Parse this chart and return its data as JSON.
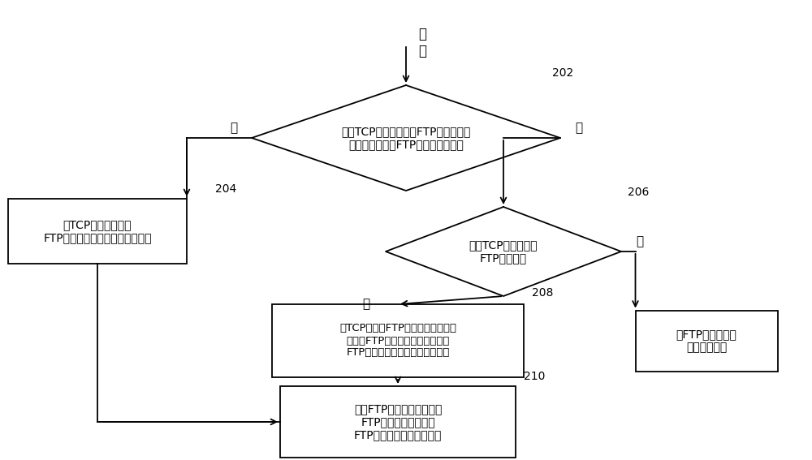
{
  "bg_color": "#ffffff",
  "font_color": "#000000",
  "title_text": "报\n文",
  "node_202_label": "判断TCP报文五元组中FTP服务器侧的\n端口号是否命中FTP控制通道端口表",
  "node_202_id": "202",
  "node_204_label": "对TCP报文载荷中的\nFTP数据通道信息进行提取和保存",
  "node_204_id": "204",
  "node_206_label": "判断TCP报文是否为\nFTP控制报文",
  "node_206_id": "206",
  "node_208_label": "将TCP报文中FTP服务器侧的端口号\n添加进FTP控制通道端口表，并对\nFTP数据通道信息进行提取和保存",
  "node_208_id": "208",
  "node_210_label": "基于FTP数据通道信息，对\nFTP数据通道下传输的\nFTP数据报文进行访问控制",
  "node_210_id": "210",
  "node_end_label": "非FTP控制报文的\n预设处理方式",
  "yes_label": "是",
  "no_label": "否",
  "line_color": "#000000",
  "box_color": "#ffffff",
  "box_edge_color": "#000000",
  "diamond_color": "#ffffff",
  "diamond_edge_color": "#000000"
}
